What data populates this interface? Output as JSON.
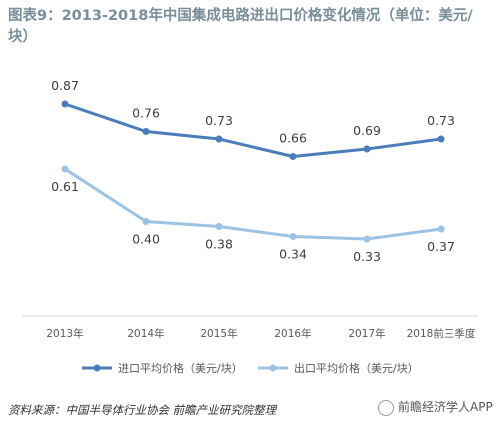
{
  "title": "图表9：2013-2018年中国集成电路进出口价格变化情况（单位：美元/块）",
  "source": "资料来源：中国半导体行业协会 前瞻产业研究院整理",
  "watermark": "前瞻经济学人APP",
  "chart_data": {
    "type": "line",
    "categories": [
      "2013年",
      "2014年",
      "2015年",
      "2016年",
      "2017年",
      "2018前三季度"
    ],
    "series": [
      {
        "name": "进口平均价格（美元/块）",
        "values": [
          0.87,
          0.76,
          0.73,
          0.66,
          0.69,
          0.73
        ],
        "color": "#4a7ebb"
      },
      {
        "name": "出口平均价格（美元/块）",
        "values": [
          0.61,
          0.4,
          0.38,
          0.34,
          0.33,
          0.37
        ],
        "color": "#9cc3e6"
      }
    ],
    "data_labels": [
      [
        "0.87",
        "0.76",
        "0.73",
        "0.66",
        "0.69",
        "0.73"
      ],
      [
        "0.61",
        "0.40",
        "0.38",
        "0.34",
        "0.33",
        "0.37"
      ]
    ],
    "legend_position": "bottom",
    "grid": false
  }
}
